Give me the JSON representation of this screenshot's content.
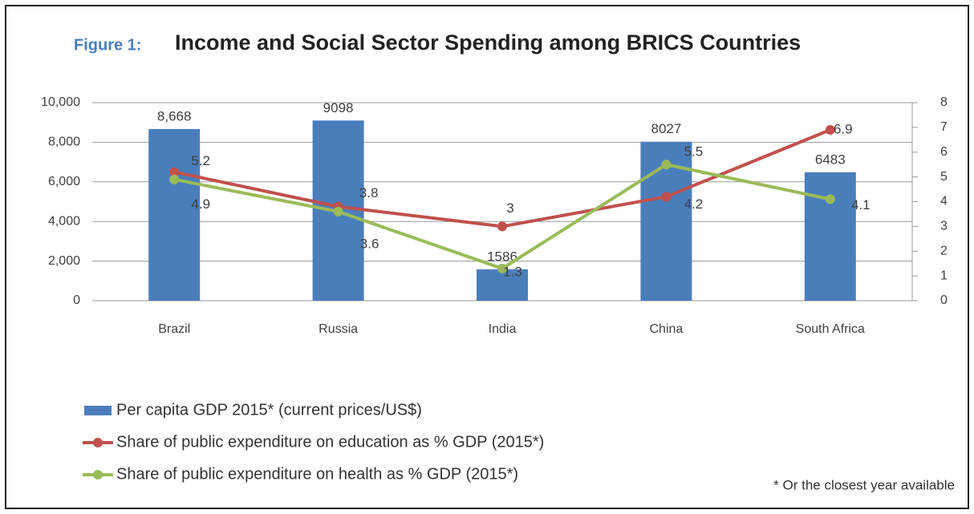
{
  "chart_data": {
    "type": "bar",
    "figure_label": "Figure 1:",
    "title": "Income and Social Sector Spending among BRICS Countries",
    "categories": [
      "Brazil",
      "Russia",
      "India",
      "China",
      "South Africa"
    ],
    "series": [
      {
        "name": "Per capita GDP 2015* (current prices/US$)",
        "type": "bar",
        "color": "#4a7ebb",
        "values": [
          8668,
          9098,
          1586,
          8027,
          6483
        ],
        "value_labels": [
          "8,668",
          "9098",
          "1586",
          "8027",
          "6483"
        ]
      },
      {
        "name": "Share of public expenditure on education as % GDP (2015*)",
        "type": "line",
        "axis": "y2",
        "color": "#c0504d",
        "values": [
          5.2,
          3.8,
          3,
          4.2,
          6.9
        ]
      },
      {
        "name": "Share of public expenditure on health as % GDP (2015*)",
        "type": "line",
        "axis": "y2",
        "color": "#9bbb59",
        "values": [
          4.9,
          3.6,
          1.3,
          5.5,
          4.1
        ]
      }
    ],
    "ylim": [
      0,
      10000
    ],
    "yticks": [
      0,
      {
        "value": 2000,
        "label": "2,000"
      },
      {
        "value": 4000,
        "label": "4,000"
      },
      {
        "value": 6000,
        "label": "6,000"
      },
      {
        "value": 8000,
        "label": "8,000"
      },
      {
        "value": 10000,
        "label": "10,000"
      }
    ],
    "y2lim": [
      0,
      8
    ],
    "y2ticks": [
      0,
      1,
      2,
      3,
      4,
      5,
      6,
      7,
      8
    ],
    "grid": true,
    "legend": "bottom",
    "footnote": "* Or the closest year available"
  }
}
